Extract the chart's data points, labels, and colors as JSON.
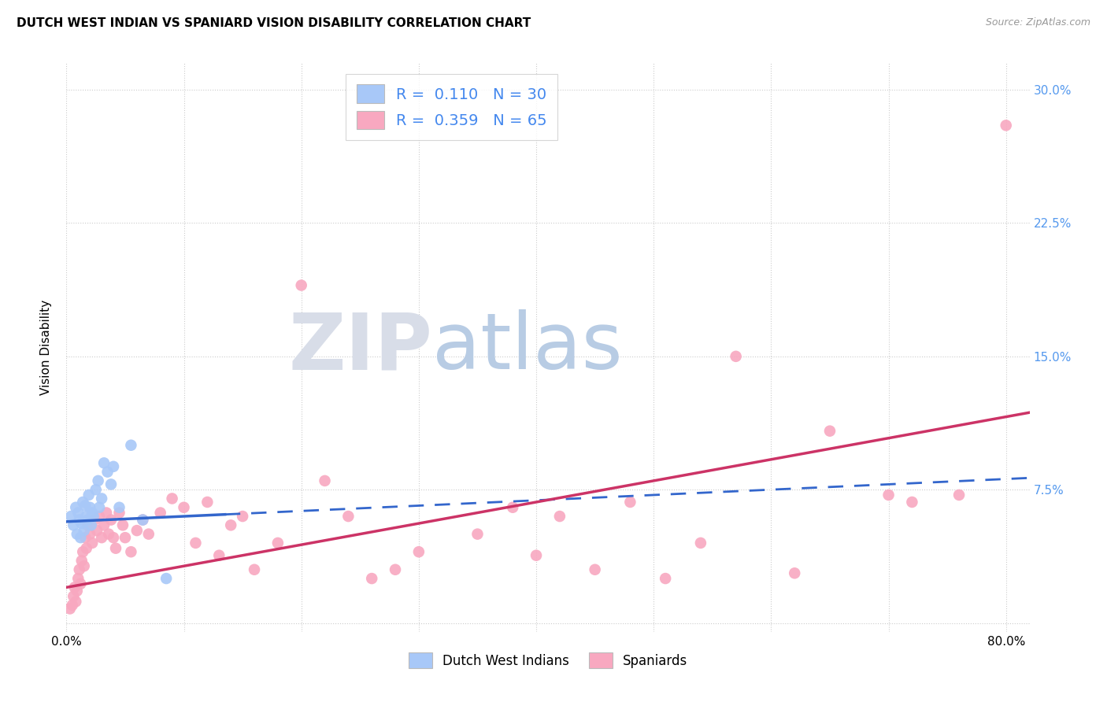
{
  "title": "DUTCH WEST INDIAN VS SPANIARD VISION DISABILITY CORRELATION CHART",
  "source": "Source: ZipAtlas.com",
  "ylabel": "Vision Disability",
  "legend_label1": "Dutch West Indians",
  "legend_label2": "Spaniards",
  "R1": "0.110",
  "N1": "30",
  "R2": "0.359",
  "N2": "65",
  "color1": "#a8c8f8",
  "color2": "#f8a8c0",
  "trendline1_color": "#3366cc",
  "trendline2_color": "#cc3366",
  "watermark_zip": "ZIP",
  "watermark_atlas": "atlas",
  "xlim": [
    0.0,
    0.82
  ],
  "ylim": [
    -0.005,
    0.315
  ],
  "x_tick_positions": [
    0.0,
    0.1,
    0.2,
    0.3,
    0.4,
    0.5,
    0.6,
    0.7,
    0.8
  ],
  "x_tick_labels": [
    "0.0%",
    "",
    "",
    "",
    "",
    "",
    "",
    "",
    "80.0%"
  ],
  "y_tick_positions": [
    0.0,
    0.075,
    0.15,
    0.225,
    0.3
  ],
  "y_tick_labels": [
    "",
    "7.5%",
    "15.0%",
    "22.5%",
    "30.0%"
  ],
  "blue_dots_x": [
    0.004,
    0.006,
    0.008,
    0.009,
    0.01,
    0.011,
    0.012,
    0.013,
    0.014,
    0.015,
    0.016,
    0.017,
    0.018,
    0.019,
    0.02,
    0.021,
    0.022,
    0.023,
    0.025,
    0.027,
    0.028,
    0.03,
    0.032,
    0.035,
    0.038,
    0.04,
    0.045,
    0.055,
    0.065,
    0.085
  ],
  "blue_dots_y": [
    0.06,
    0.055,
    0.065,
    0.05,
    0.062,
    0.058,
    0.048,
    0.056,
    0.068,
    0.052,
    0.066,
    0.06,
    0.058,
    0.072,
    0.065,
    0.055,
    0.062,
    0.06,
    0.075,
    0.08,
    0.065,
    0.07,
    0.09,
    0.085,
    0.078,
    0.088,
    0.065,
    0.1,
    0.058,
    0.025
  ],
  "pink_dots_x": [
    0.003,
    0.005,
    0.006,
    0.007,
    0.008,
    0.009,
    0.01,
    0.011,
    0.012,
    0.013,
    0.014,
    0.015,
    0.016,
    0.017,
    0.018,
    0.02,
    0.022,
    0.024,
    0.026,
    0.028,
    0.03,
    0.032,
    0.034,
    0.036,
    0.038,
    0.04,
    0.042,
    0.045,
    0.048,
    0.05,
    0.055,
    0.06,
    0.065,
    0.07,
    0.08,
    0.09,
    0.1,
    0.11,
    0.12,
    0.13,
    0.14,
    0.15,
    0.16,
    0.18,
    0.2,
    0.22,
    0.24,
    0.26,
    0.28,
    0.3,
    0.35,
    0.38,
    0.4,
    0.42,
    0.45,
    0.48,
    0.51,
    0.54,
    0.57,
    0.62,
    0.65,
    0.7,
    0.72,
    0.76,
    0.8
  ],
  "pink_dots_y": [
    0.008,
    0.01,
    0.015,
    0.02,
    0.012,
    0.018,
    0.025,
    0.03,
    0.022,
    0.035,
    0.04,
    0.032,
    0.048,
    0.042,
    0.055,
    0.05,
    0.045,
    0.058,
    0.052,
    0.06,
    0.048,
    0.055,
    0.062,
    0.05,
    0.058,
    0.048,
    0.042,
    0.062,
    0.055,
    0.048,
    0.04,
    0.052,
    0.058,
    0.05,
    0.062,
    0.07,
    0.065,
    0.045,
    0.068,
    0.038,
    0.055,
    0.06,
    0.03,
    0.045,
    0.19,
    0.08,
    0.06,
    0.025,
    0.03,
    0.04,
    0.05,
    0.065,
    0.038,
    0.06,
    0.03,
    0.068,
    0.025,
    0.045,
    0.15,
    0.028,
    0.108,
    0.072,
    0.068,
    0.072,
    0.28
  ],
  "trendline1_x_solid_end": 0.135,
  "trendline1_intercept": 0.057,
  "trendline1_slope": 0.03,
  "trendline2_intercept": 0.02,
  "trendline2_slope": 0.12
}
